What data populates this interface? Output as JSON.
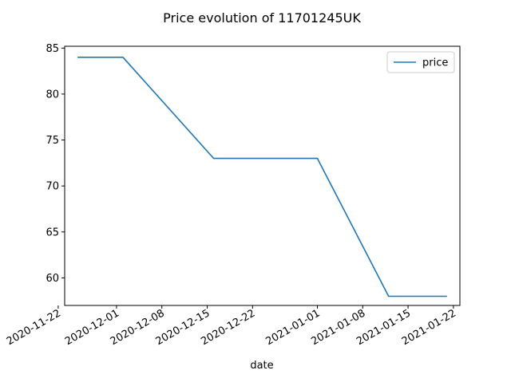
{
  "chart_data": {
    "type": "line",
    "title": "Price evolution of 11701245UK",
    "xlabel": "date",
    "ylabel": "",
    "x_type": "date",
    "x": [
      "2020-11-25",
      "2020-12-02",
      "2020-12-16",
      "2021-01-01",
      "2021-01-12",
      "2021-01-21"
    ],
    "series": [
      {
        "name": "price",
        "values": [
          84,
          84,
          73,
          73,
          58,
          58
        ],
        "color": "#1f77b4"
      }
    ],
    "xlim": [
      "2020-11-23",
      "2021-01-23"
    ],
    "ylim": [
      57,
      85.2
    ],
    "x_ticks": [
      "2020-11-22",
      "2020-12-01",
      "2020-12-08",
      "2020-12-15",
      "2020-12-22",
      "2021-01-01",
      "2021-01-08",
      "2021-01-15",
      "2021-01-22"
    ],
    "y_ticks": [
      60,
      65,
      70,
      75,
      80,
      85
    ],
    "grid": false,
    "legend_position": "top-right"
  }
}
